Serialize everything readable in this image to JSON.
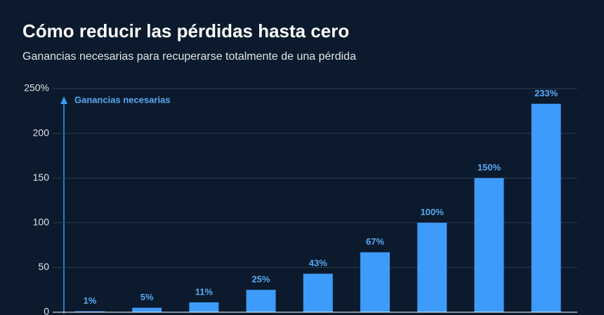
{
  "chart_data": {
    "type": "bar",
    "title": "Cómo reducir las pérdidas hasta cero",
    "subtitle": "Ganancias necesarias para recuperarse totalmente de una pérdida",
    "annotation": "Ganancias necesarias",
    "values": [
      1,
      5,
      11,
      25,
      43,
      67,
      100,
      150,
      233
    ],
    "value_labels": [
      "1%",
      "5%",
      "11%",
      "25%",
      "43%",
      "67%",
      "100%",
      "150%",
      "233%"
    ],
    "color": "#3d9bfb",
    "ylim": [
      0,
      250
    ],
    "yticks": [
      0,
      50,
      100,
      150,
      200,
      {
        "value": 250,
        "label": "250%"
      }
    ],
    "grid": true
  }
}
